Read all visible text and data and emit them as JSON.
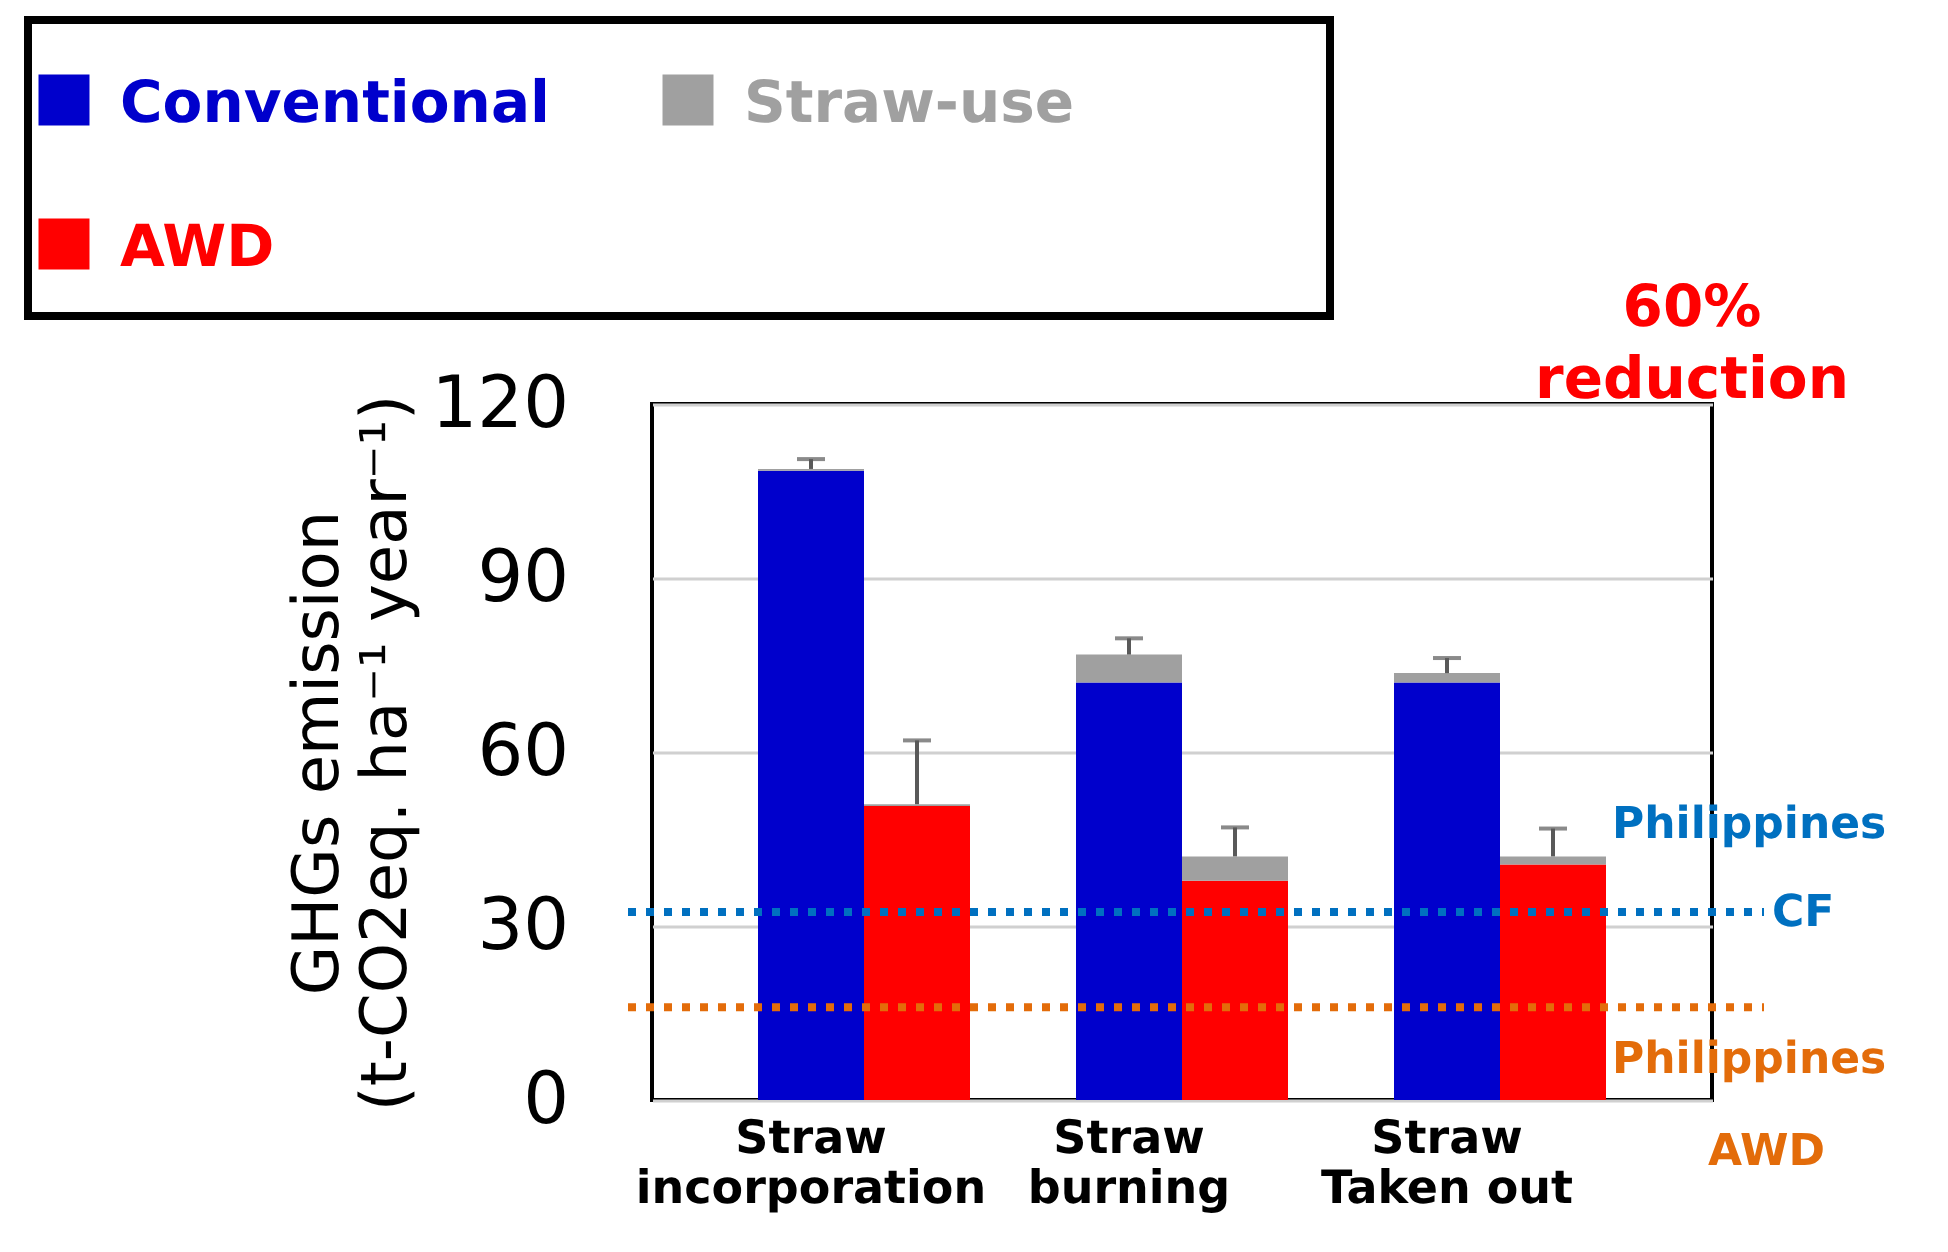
{
  "chart_data": {
    "type": "bar",
    "stacked": true,
    "categories": [
      "Straw incorporation",
      null,
      "Straw burning",
      null,
      "Straw Taken out",
      null
    ],
    "ylabel": "GHGs emission (t-CO2eq. ha⁻¹ year⁻¹)",
    "ylim": [
      0,
      120
    ],
    "yticks": [
      0,
      30,
      60,
      90,
      120
    ],
    "grid": "y",
    "legend": "top left",
    "series": [
      {
        "name": "Conventional",
        "color": "#0000cc",
        "values": [
          108.5,
          null,
          72,
          null,
          72,
          null
        ]
      },
      {
        "name": "AWD",
        "color": "#ff0000",
        "values": [
          null,
          50.7,
          null,
          37.8,
          null,
          40.6
        ]
      },
      {
        "name": "Straw-use",
        "color": "#a0a0a0",
        "values": [
          0.3,
          0.3,
          4.8,
          4.2,
          1.6,
          1.4
        ],
        "errors": [
          [
            108.8,
            110.5
          ],
          [
            51,
            62
          ],
          [
            76.8,
            79.6
          ],
          [
            42,
            47
          ],
          [
            73.6,
            76.2
          ],
          [
            42,
            46.8
          ]
        ]
      }
    ],
    "ref_lines": [
      {
        "axis": "y",
        "value": 32.4,
        "label": "Philippines CF",
        "color": "#0070c0",
        "line_style": "dotted"
      },
      {
        "axis": "y",
        "value": 16,
        "label": "Philippines AWD",
        "color": "#e36c0a",
        "line_style": "dotted"
      }
    ],
    "annotations": [
      "60% reduction"
    ]
  }
}
